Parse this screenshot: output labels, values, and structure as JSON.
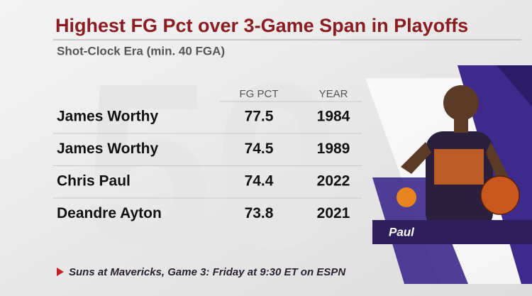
{
  "header": {
    "title": "Highest FG Pct over 3-Game Span in Playoffs",
    "subtitle": "Shot-Clock Era (min. 40 FGA)"
  },
  "table": {
    "columns": [
      "FG PCT",
      "YEAR"
    ],
    "rows": [
      [
        "James Worthy",
        "77.5",
        "1984"
      ],
      [
        "James Worthy",
        "74.5",
        "1989"
      ],
      [
        "Chris Paul",
        "74.4",
        "2022"
      ],
      [
        "Deandre Ayton",
        "73.8",
        "2021"
      ]
    ]
  },
  "player_label": "Paul",
  "footer": "Suns at Mavericks, Game 3: Friday at 9:30 ET on ESPN"
}
